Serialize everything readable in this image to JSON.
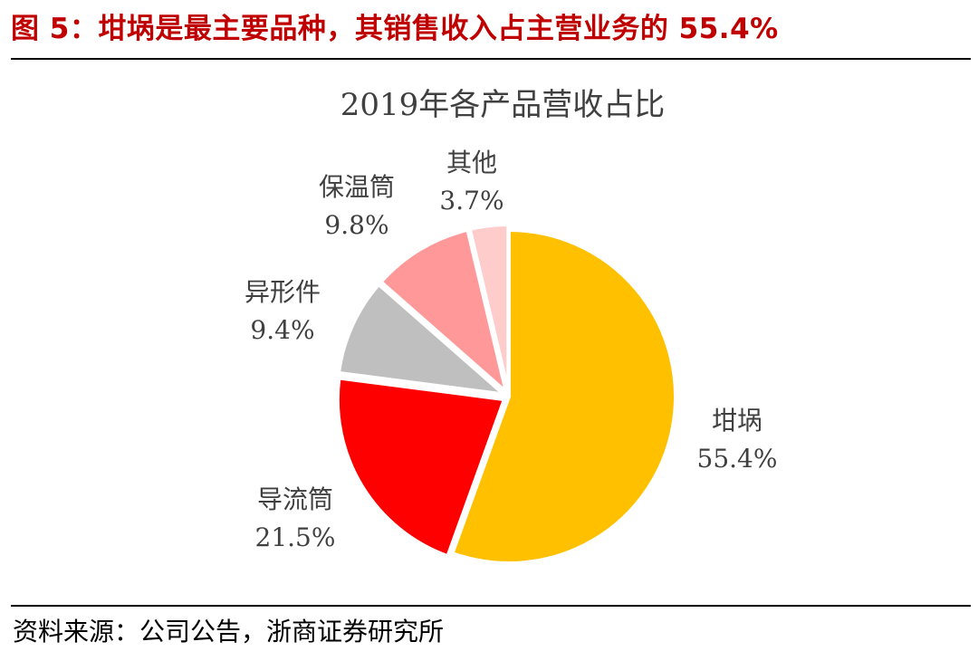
{
  "figure": {
    "title": "图 5：坩埚是最主要品种，其销售收入占主营业务的 55.4%",
    "source": "资料来源：公司公告，浙商证券研究所",
    "title_color": "#c00000"
  },
  "chart_data": {
    "type": "pie",
    "title": "2019年各产品营收占比",
    "slices": [
      {
        "name": "坩埚",
        "value": 55.4,
        "label": "55.4%",
        "color": "#ffc000"
      },
      {
        "name": "导流筒",
        "value": 21.5,
        "label": "21.5%",
        "color": "#ff0000"
      },
      {
        "name": "异形件",
        "value": 9.4,
        "label": "9.4%",
        "color": "#bfbfbf"
      },
      {
        "name": "保温筒",
        "value": 9.8,
        "label": "9.8%",
        "color": "#ff9999"
      },
      {
        "name": "其他",
        "value": 3.7,
        "label": "3.7%",
        "color": "#ffcccc"
      }
    ],
    "start": "12 o'clock",
    "direction": "clockwise",
    "legend": "none"
  }
}
